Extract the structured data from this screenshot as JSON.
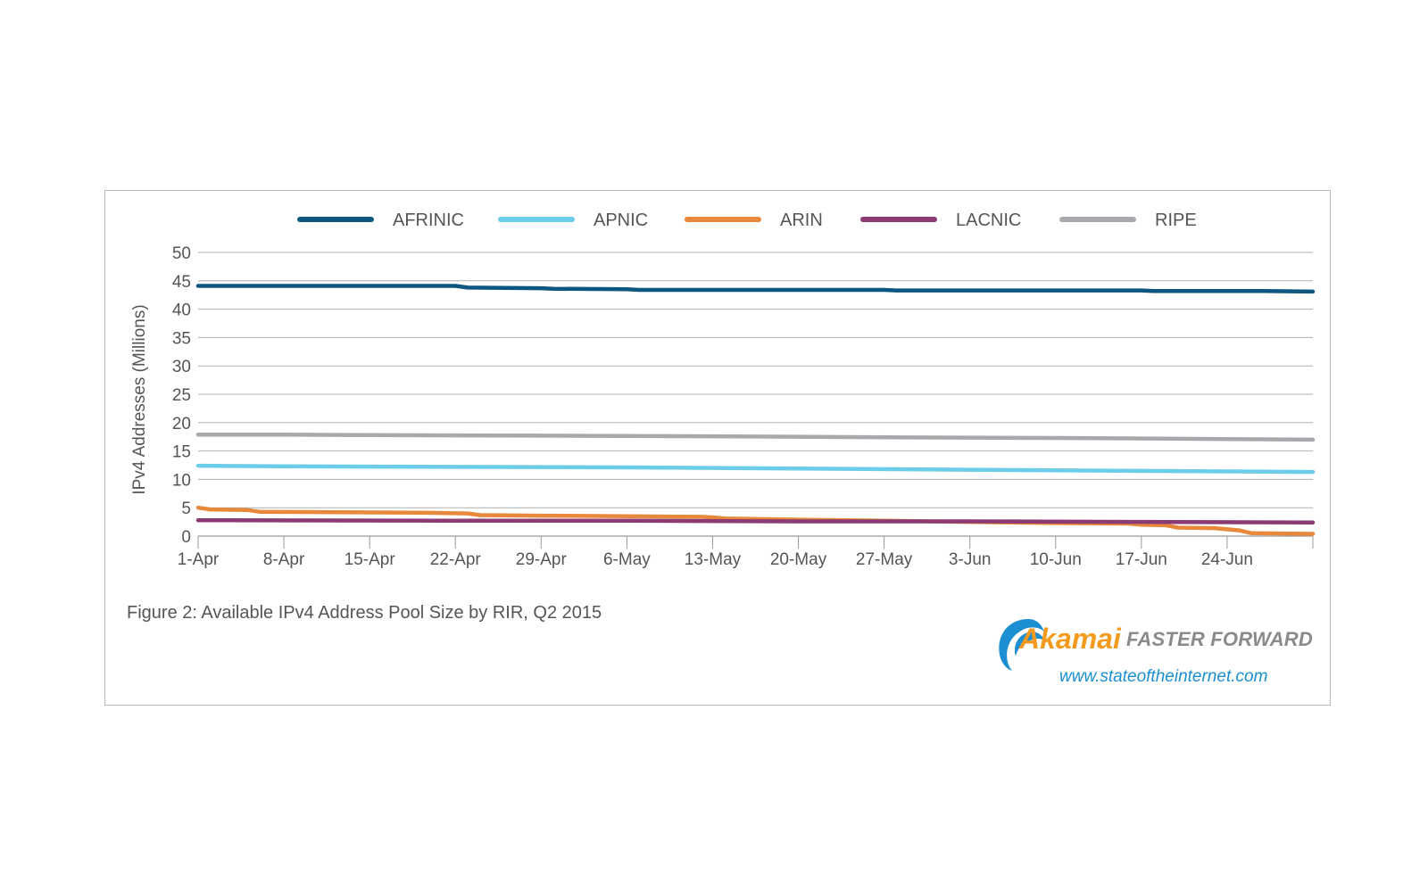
{
  "caption": "Figure 2: Available IPv4 Address Pool Size by RIR, Q2 2015",
  "logo": {
    "brand": "Akamai",
    "tagline": "FASTER FORWARD",
    "url": "www.stateoftheinternet.com",
    "colors": {
      "brand": "#f49b1f",
      "tagline": "#8a8a8a",
      "url": "#1b8fd1",
      "swoosh": "#1b8fd1"
    }
  },
  "chart_data": {
    "type": "line",
    "title": "",
    "xlabel": "",
    "ylabel": "IPv4 Addresses (Millions)",
    "ylim": [
      0,
      50
    ],
    "yticks": [
      0,
      5,
      10,
      15,
      20,
      25,
      30,
      35,
      40,
      45,
      50
    ],
    "xlim": [
      1,
      92
    ],
    "x_tick_labels": [
      {
        "day": 1,
        "label": "1-Apr"
      },
      {
        "day": 8,
        "label": "8-Apr"
      },
      {
        "day": 15,
        "label": "15-Apr"
      },
      {
        "day": 22,
        "label": "22-Apr"
      },
      {
        "day": 29,
        "label": "29-Apr"
      },
      {
        "day": 36,
        "label": "6-May"
      },
      {
        "day": 43,
        "label": "13-May"
      },
      {
        "day": 50,
        "label": "20-May"
      },
      {
        "day": 57,
        "label": "27-May"
      },
      {
        "day": 64,
        "label": "3-Jun"
      },
      {
        "day": 71,
        "label": "10-Jun"
      },
      {
        "day": 78,
        "label": "17-Jun"
      },
      {
        "day": 85,
        "label": "24-Jun"
      }
    ],
    "grid": true,
    "legend_position": "top",
    "series": [
      {
        "name": "AFRINIC",
        "color": "#0d5680",
        "points": [
          [
            1,
            44.1
          ],
          [
            22,
            44.1
          ],
          [
            23,
            43.8
          ],
          [
            29,
            43.7
          ],
          [
            30,
            43.6
          ],
          [
            36,
            43.5
          ],
          [
            37,
            43.4
          ],
          [
            57,
            43.4
          ],
          [
            58,
            43.3
          ],
          [
            78,
            43.3
          ],
          [
            79,
            43.2
          ],
          [
            88,
            43.2
          ],
          [
            92,
            43.1
          ]
        ]
      },
      {
        "name": "APNIC",
        "color": "#6ccde8",
        "points": [
          [
            1,
            12.4
          ],
          [
            8,
            12.3
          ],
          [
            22,
            12.2
          ],
          [
            36,
            12.1
          ],
          [
            50,
            11.9
          ],
          [
            64,
            11.7
          ],
          [
            71,
            11.6
          ],
          [
            78,
            11.5
          ],
          [
            85,
            11.4
          ],
          [
            92,
            11.3
          ]
        ]
      },
      {
        "name": "ARIN",
        "color": "#e8883a",
        "points": [
          [
            1,
            5.0
          ],
          [
            2,
            4.7
          ],
          [
            5,
            4.6
          ],
          [
            6,
            4.3
          ],
          [
            20,
            4.1
          ],
          [
            23,
            4.0
          ],
          [
            24,
            3.7
          ],
          [
            29,
            3.6
          ],
          [
            36,
            3.5
          ],
          [
            42,
            3.4
          ],
          [
            43,
            3.3
          ],
          [
            44,
            3.1
          ],
          [
            50,
            2.9
          ],
          [
            57,
            2.7
          ],
          [
            64,
            2.5
          ],
          [
            71,
            2.3
          ],
          [
            77,
            2.2
          ],
          [
            78,
            2.0
          ],
          [
            80,
            1.9
          ],
          [
            81,
            1.5
          ],
          [
            84,
            1.4
          ],
          [
            86,
            1.0
          ],
          [
            87,
            0.5
          ],
          [
            92,
            0.4
          ]
        ]
      },
      {
        "name": "LACNIC",
        "color": "#8b3a74",
        "points": [
          [
            1,
            2.8
          ],
          [
            22,
            2.7
          ],
          [
            36,
            2.7
          ],
          [
            50,
            2.6
          ],
          [
            64,
            2.6
          ],
          [
            78,
            2.5
          ],
          [
            92,
            2.4
          ]
        ]
      },
      {
        "name": "RIPE",
        "color": "#a7a9ac",
        "points": [
          [
            1,
            17.9
          ],
          [
            8,
            17.9
          ],
          [
            15,
            17.8
          ],
          [
            29,
            17.7
          ],
          [
            43,
            17.6
          ],
          [
            57,
            17.4
          ],
          [
            71,
            17.3
          ],
          [
            85,
            17.1
          ],
          [
            92,
            17.0
          ]
        ]
      }
    ]
  }
}
